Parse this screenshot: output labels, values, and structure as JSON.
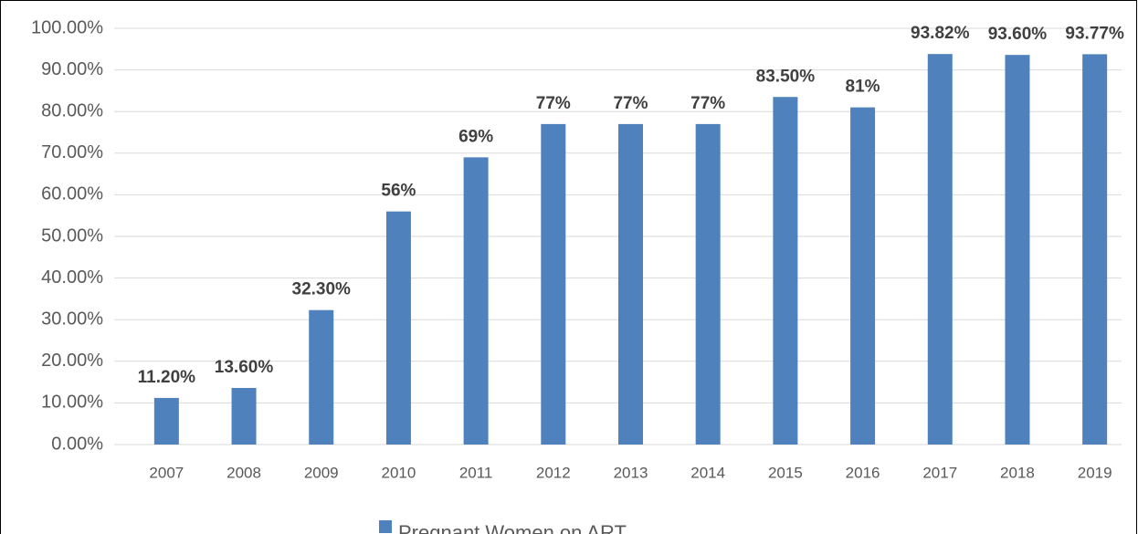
{
  "chart_data": {
    "type": "bar",
    "categories": [
      "2007",
      "2008",
      "2009",
      "2010",
      "2011",
      "2012",
      "2013",
      "2014",
      "2015",
      "2016",
      "2017",
      "2018",
      "2019"
    ],
    "series": [
      {
        "name": "Pregnant Women on ART",
        "color": "#4f81bd",
        "values": [
          11.2,
          13.6,
          32.3,
          56,
          69,
          77,
          77,
          77,
          83.5,
          81,
          93.82,
          93.6,
          93.77
        ],
        "value_labels": [
          "11.20%",
          "13.60%",
          "32.30%",
          "56%",
          "69%",
          "77%",
          "77%",
          "77%",
          "83.50%",
          "81%",
          "93.82%",
          "93.60%",
          "93.77%"
        ]
      }
    ],
    "ylim": [
      0,
      100
    ],
    "yticks": [
      {
        "value": 0,
        "label": "0.00%"
      },
      {
        "value": 10,
        "label": "10.00%"
      },
      {
        "value": 20,
        "label": "20.00%"
      },
      {
        "value": 30,
        "label": "30.00%"
      },
      {
        "value": 40,
        "label": "40.00%"
      },
      {
        "value": 50,
        "label": "50.00%"
      },
      {
        "value": 60,
        "label": "60.00%"
      },
      {
        "value": 70,
        "label": "70.00%"
      },
      {
        "value": 80,
        "label": "80.00%"
      },
      {
        "value": 90,
        "label": "90.00%"
      },
      {
        "value": 100,
        "label": "100.00%"
      }
    ],
    "grid": true,
    "legend": "bottom"
  }
}
